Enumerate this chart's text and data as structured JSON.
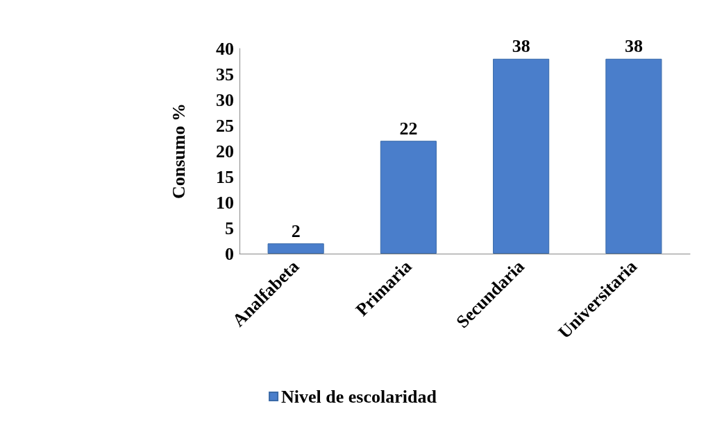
{
  "chart_data": {
    "type": "bar",
    "ylabel": "Consumo %",
    "categories": [
      "Analfabeta",
      "Primaria",
      "Secundaria",
      "Universitaria"
    ],
    "series": [
      {
        "name": "Nivel de escolaridad",
        "color": "#4a7ecb",
        "values": [
          2,
          22,
          38,
          38
        ]
      }
    ],
    "ylim": [
      0,
      40
    ],
    "yticks": [
      0,
      5,
      10,
      15,
      20,
      25,
      30,
      35,
      40
    ],
    "data_labels": true,
    "legend": "bottom",
    "grid": false
  }
}
